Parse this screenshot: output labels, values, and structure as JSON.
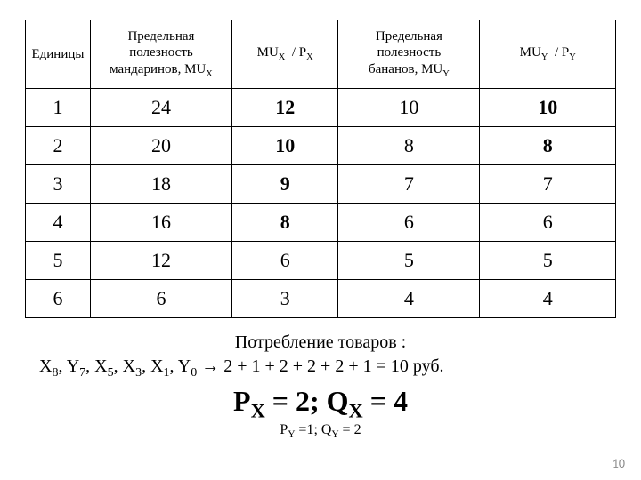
{
  "table": {
    "columns": [
      {
        "html": "Единицы"
      },
      {
        "html": "Предельная<br>полезность<br>мандаринов, MU<span class=\"sub\">X</span>"
      },
      {
        "html": "MU<span class=\"sub\">X</span>&nbsp; / P<span class=\"sub\">X</span>"
      },
      {
        "html": "Предельная<br>полезность<br>бананов, MU<span class=\"sub\">Y</span>"
      },
      {
        "html": "MU<span class=\"sub\">Y</span>&nbsp; / P<span class=\"sub\">Y</span>"
      }
    ],
    "rows": [
      {
        "cells": [
          "1",
          "24",
          "12",
          "10",
          "10"
        ],
        "bold": [
          false,
          false,
          true,
          false,
          true
        ]
      },
      {
        "cells": [
          "2",
          "20",
          "10",
          "8",
          "8"
        ],
        "bold": [
          false,
          false,
          true,
          false,
          true
        ]
      },
      {
        "cells": [
          "3",
          "18",
          "9",
          "7",
          "7"
        ],
        "bold": [
          false,
          false,
          true,
          false,
          false
        ]
      },
      {
        "cells": [
          "4",
          "16",
          "8",
          "6",
          "6"
        ],
        "bold": [
          false,
          false,
          true,
          false,
          false
        ]
      },
      {
        "cells": [
          "5",
          "12",
          "6",
          "5",
          "5"
        ],
        "bold": [
          false,
          false,
          false,
          false,
          false
        ]
      },
      {
        "cells": [
          "6",
          "6",
          "3",
          "4",
          "4"
        ],
        "bold": [
          false,
          false,
          false,
          false,
          false
        ]
      }
    ],
    "border_color": "#000000",
    "header_fontsize": 15,
    "cell_fontsize": 22
  },
  "caption": {
    "line1": "Потребление товаров :",
    "line2_html": "X<span class=\"sub\">8</span>, Y<span class=\"sub\">7</span>, X<span class=\"sub\">5</span>, X<span class=\"sub\">3</span>, X<span class=\"sub\">1</span>, Y<span class=\"sub\">0</span> <span class=\"arrow\">&#8594;</span> 2 + 1 + 2 + 2 + 2 + 1 = 10 руб."
  },
  "equation": {
    "main_html": "P<span class=\"sub\">X</span> = 2; Q<span class=\"sub\">X</span> = 4",
    "small_html": "P<span class=\"sub\">Y</span> =1; Q<span class=\"sub\">Y</span> = 2"
  },
  "page_number": "10"
}
